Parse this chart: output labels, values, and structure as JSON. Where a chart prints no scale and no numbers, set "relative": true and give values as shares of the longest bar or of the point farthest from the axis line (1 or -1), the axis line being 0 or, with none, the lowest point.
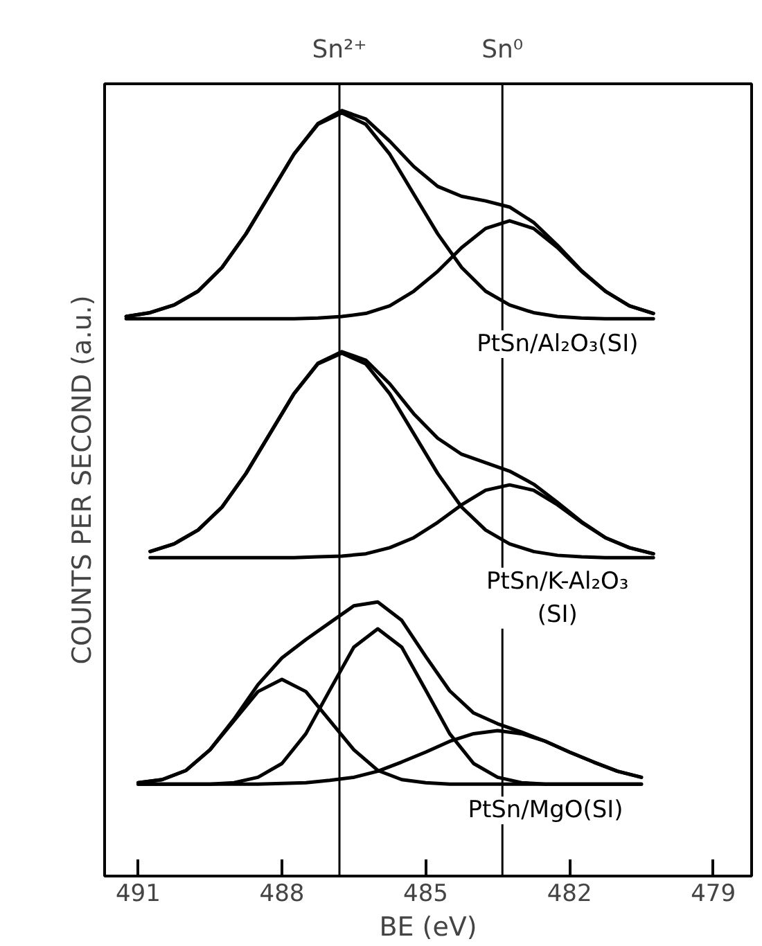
{
  "chart_data": {
    "type": "line",
    "relative": true,
    "xlabel": "BE (eV)",
    "ylabel": "COUNTS PER SECOND (a.u.)",
    "xlim": [
      491.7,
      478.2
    ],
    "xticks": [
      491,
      488,
      485,
      482,
      479
    ],
    "line_style": "solid",
    "x": [
      491.25,
      490.75,
      490.25,
      489.75,
      489.25,
      488.75,
      488.25,
      487.75,
      487.25,
      486.75,
      486.25,
      485.75,
      485.25,
      484.75,
      484.25,
      483.75,
      483.25,
      482.75,
      482.25,
      481.75,
      481.25,
      480.75,
      480.25
    ],
    "ref_lines": [
      {
        "axis": "x",
        "value": 486.8,
        "label": "Sn²⁺",
        "color": "#000000"
      },
      {
        "axis": "x",
        "value": 483.4,
        "label": "Sn⁰",
        "color": "#000000"
      }
    ],
    "series": [
      {
        "name": "PtSn/Al₂O₃(SI)",
        "color": "#000000",
        "values": [
          0.731,
          0.736,
          0.746,
          0.764,
          0.795,
          0.839,
          0.891,
          0.943,
          0.983,
          1.0,
          0.989,
          0.96,
          0.927,
          0.901,
          0.888,
          0.882,
          0.874,
          0.854,
          0.824,
          0.791,
          0.764,
          0.745,
          0.735
        ]
      },
      {
        "color": "#000000",
        "values": [
          0.731,
          0.736,
          0.746,
          0.764,
          0.795,
          0.839,
          0.891,
          0.943,
          0.982,
          0.997,
          0.982,
          0.943,
          0.891,
          0.839,
          0.795,
          0.764,
          0.746,
          0.736,
          0.731,
          0.729,
          0.728,
          0.728,
          0.728
        ]
      },
      {
        "color": "#000000",
        "values": [
          0.728,
          0.728,
          0.728,
          0.728,
          0.728,
          0.728,
          0.728,
          0.728,
          0.729,
          0.731,
          0.735,
          0.745,
          0.764,
          0.79,
          0.821,
          0.846,
          0.856,
          0.846,
          0.821,
          0.79,
          0.764,
          0.745,
          0.735
        ]
      },
      {
        "name": "PtSn/K-Al₂O₃\n(SI)",
        "color": "#000000",
        "values": [
          null,
          0.424,
          0.434,
          0.452,
          0.482,
          0.526,
          0.578,
          0.63,
          0.67,
          0.685,
          0.674,
          0.643,
          0.604,
          0.572,
          0.551,
          0.54,
          0.529,
          0.512,
          0.488,
          0.463,
          0.442,
          0.429,
          0.421
        ]
      },
      {
        "color": "#000000",
        "values": [
          null,
          0.424,
          0.434,
          0.452,
          0.482,
          0.526,
          0.578,
          0.63,
          0.669,
          0.683,
          0.669,
          0.63,
          0.578,
          0.526,
          0.482,
          0.452,
          0.434,
          0.424,
          0.419,
          0.417,
          0.416,
          0.416,
          0.416
        ]
      },
      {
        "color": "#000000",
        "values": [
          null,
          0.416,
          0.416,
          0.416,
          0.416,
          0.416,
          0.416,
          0.416,
          0.417,
          0.418,
          0.421,
          0.429,
          0.442,
          0.462,
          0.485,
          0.504,
          0.511,
          0.504,
          0.485,
          0.462,
          0.442,
          0.429,
          0.421
        ]
      },
      {
        "name": "PtSn/MgO(SI)",
        "color": "#000000",
        "x": [
          491.0,
          490.5,
          490.0,
          489.5,
          489.0,
          488.5,
          488.0,
          487.5,
          487.0,
          486.5,
          486.0,
          485.5,
          485.0,
          484.5,
          484.0,
          483.5,
          483.0,
          482.5,
          482.0,
          481.5,
          481.0,
          480.5
        ],
        "values": [
          0.122,
          0.126,
          0.138,
          0.165,
          0.205,
          0.25,
          0.285,
          0.309,
          0.331,
          0.353,
          0.358,
          0.334,
          0.287,
          0.242,
          0.213,
          0.199,
          0.188,
          0.176,
          0.162,
          0.149,
          0.137,
          0.129
        ]
      },
      {
        "color": "#000000",
        "x": [
          491.0,
          490.5,
          490.0,
          489.5,
          489.0,
          488.5,
          488.0,
          487.5,
          487.0,
          486.5,
          486.0,
          485.5,
          485.0,
          484.5,
          484.0,
          483.5,
          483.0,
          482.5,
          482.0,
          481.5,
          481.0,
          480.5
        ],
        "values": [
          0.122,
          0.126,
          0.138,
          0.165,
          0.203,
          0.241,
          0.257,
          0.241,
          0.203,
          0.165,
          0.138,
          0.126,
          0.122,
          0.12,
          0.12,
          0.12,
          0.12,
          0.12,
          0.12,
          0.12,
          0.12,
          0.12
        ]
      },
      {
        "color": "#000000",
        "x": [
          491.0,
          490.5,
          490.0,
          489.5,
          489.0,
          488.5,
          488.0,
          487.5,
          487.0,
          486.5,
          486.0,
          485.5,
          485.0,
          484.5,
          484.0,
          483.5,
          483.0,
          482.5,
          482.0,
          481.5,
          481.0,
          480.5
        ],
        "values": [
          0.12,
          0.12,
          0.12,
          0.12,
          0.122,
          0.129,
          0.147,
          0.186,
          0.243,
          0.299,
          0.323,
          0.299,
          0.243,
          0.186,
          0.147,
          0.129,
          0.122,
          0.12,
          0.12,
          0.12,
          0.12,
          0.12
        ]
      },
      {
        "color": "#000000",
        "x": [
          491.0,
          490.5,
          490.0,
          489.5,
          489.0,
          488.5,
          488.0,
          487.5,
          487.0,
          486.5,
          486.0,
          485.5,
          485.0,
          484.5,
          484.0,
          483.5,
          483.0,
          482.5,
          482.0,
          481.5,
          481.0,
          480.5
        ],
        "values": [
          0.12,
          0.12,
          0.12,
          0.12,
          0.12,
          0.12,
          0.121,
          0.122,
          0.125,
          0.129,
          0.137,
          0.149,
          0.162,
          0.176,
          0.186,
          0.19,
          0.186,
          0.176,
          0.162,
          0.149,
          0.137,
          0.129
        ]
      }
    ]
  }
}
